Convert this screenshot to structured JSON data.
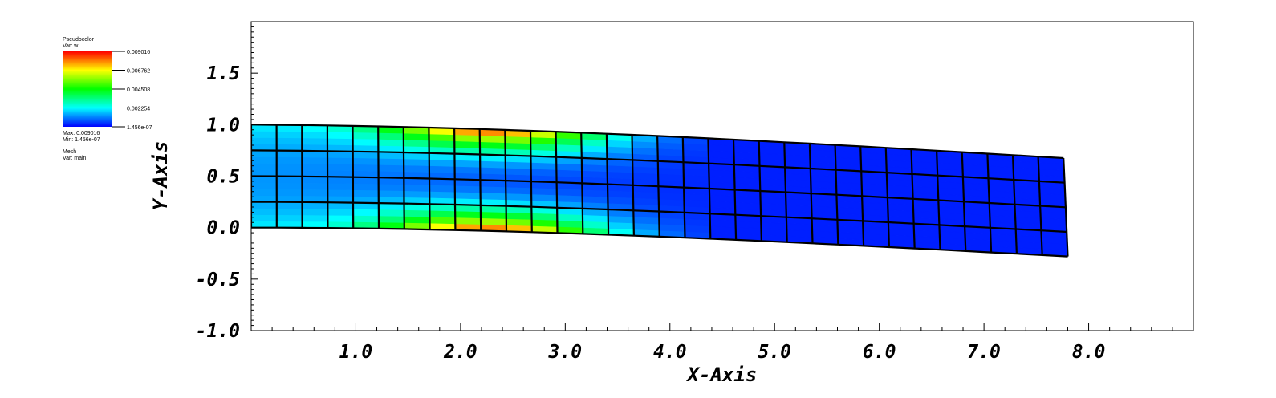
{
  "legend": {
    "plot_name": "Pseudocolor",
    "var_label": "Var: w",
    "tick_labels": [
      "0.009016",
      "0.006762",
      "0.004508",
      "0.002254",
      "1.456e-07"
    ],
    "max_label": "Max: 0.009016",
    "min_label": "Min: 1.456e-07",
    "mesh_name": "Mesh",
    "mesh_var": "Var: main"
  },
  "chart_data": {
    "type": "heatmap",
    "description_kind": "pseudocolor field on deformed quad mesh",
    "xlabel": "X-Axis",
    "ylabel": "Y-Axis",
    "xlim": [
      0,
      9.0
    ],
    "ylim": [
      -1.0,
      2.0
    ],
    "x_tick_labels": [
      "1.0",
      "2.0",
      "3.0",
      "4.0",
      "5.0",
      "6.0",
      "7.0",
      "8.0"
    ],
    "y_tick_labels": [
      "1.5",
      "1.0",
      "0.5",
      "0.0",
      "-0.5",
      "-1.0"
    ],
    "x_ticks": [
      1,
      2,
      3,
      4,
      5,
      6,
      7,
      8
    ],
    "y_ticks": [
      1.5,
      1.0,
      0.5,
      0.0,
      -0.5,
      -1.0
    ],
    "mesh": {
      "columns": 32,
      "rows": 4,
      "x_start": 0.0,
      "x_end": 7.8,
      "bottom_tip_deflection": -0.28,
      "top_start": 1.0,
      "top_end": 0.67
    },
    "colorbar": {
      "min": 1.456e-07,
      "max": 0.009016,
      "colors": [
        "#0000ff",
        "#00ffff",
        "#00ff00",
        "#ffff00",
        "#ff0000"
      ]
    }
  }
}
